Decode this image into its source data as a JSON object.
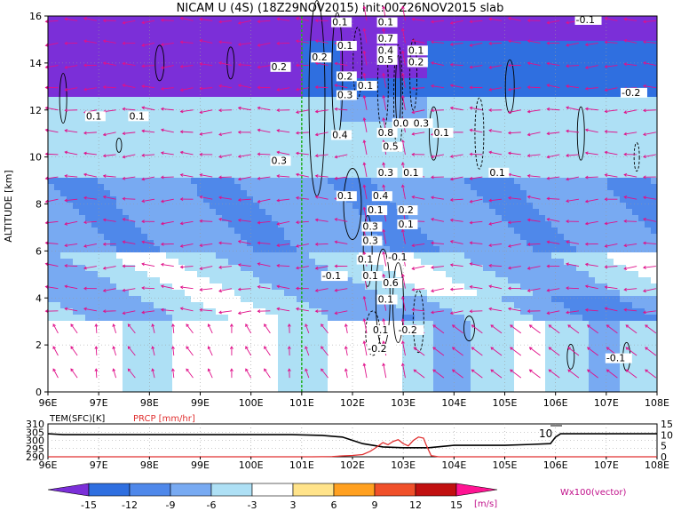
{
  "title": "NICAM U (4S) (18Z29NOV2015) init:00Z26NOV2015 slab",
  "chart_data": [
    {
      "type": "heatmap",
      "xlabel": "",
      "ylabel": "ALTITUDE [km]",
      "xlim": [
        96,
        108
      ],
      "ylim": [
        0,
        16
      ],
      "x_ticks": [
        "96E",
        "97E",
        "98E",
        "99E",
        "100E",
        "101E",
        "102E",
        "103E",
        "104E",
        "105E",
        "106E",
        "107E",
        "108E"
      ],
      "y_ticks": [
        "0",
        "2",
        "4",
        "6",
        "8",
        "10",
        "12",
        "14",
        "16"
      ],
      "vertical_line_lon": 101,
      "contour_labels": [
        {
          "lon": 96.75,
          "alt": 11.6,
          "text": "0.1"
        },
        {
          "lon": 97.6,
          "alt": 11.6,
          "text": "0.1"
        },
        {
          "lon": 100.4,
          "alt": 13.7,
          "text": "0.2"
        },
        {
          "lon": 100.4,
          "alt": 9.7,
          "text": "0.3"
        },
        {
          "lon": 101.6,
          "alt": 15.6,
          "text": "0.1"
        },
        {
          "lon": 101.2,
          "alt": 14.1,
          "text": "0.2"
        },
        {
          "lon": 101.7,
          "alt": 14.6,
          "text": "0.1"
        },
        {
          "lon": 101.7,
          "alt": 13.3,
          "text": "0.2"
        },
        {
          "lon": 101.7,
          "alt": 12.5,
          "text": "0.3"
        },
        {
          "lon": 101.6,
          "alt": 10.8,
          "text": "0.4"
        },
        {
          "lon": 102.1,
          "alt": 12.9,
          "text": "0.1"
        },
        {
          "lon": 102.5,
          "alt": 15.6,
          "text": "0.1"
        },
        {
          "lon": 102.5,
          "alt": 14.9,
          "text": "0.7"
        },
        {
          "lon": 102.5,
          "alt": 14.4,
          "text": "0.4"
        },
        {
          "lon": 102.5,
          "alt": 14.0,
          "text": "0.5"
        },
        {
          "lon": 103.1,
          "alt": 14.4,
          "text": "0.1"
        },
        {
          "lon": 103.1,
          "alt": 13.9,
          "text": "0.2"
        },
        {
          "lon": 102.8,
          "alt": 11.3,
          "text": "0.0"
        },
        {
          "lon": 103.2,
          "alt": 11.3,
          "text": "0.3"
        },
        {
          "lon": 102.5,
          "alt": 10.9,
          "text": "0.8"
        },
        {
          "lon": 102.6,
          "alt": 10.3,
          "text": "0.5"
        },
        {
          "lon": 103.6,
          "alt": 10.9,
          "text": "0.1"
        },
        {
          "lon": 102.5,
          "alt": 9.2,
          "text": "0.3"
        },
        {
          "lon": 103.0,
          "alt": 9.2,
          "text": "0.1"
        },
        {
          "lon": 104.7,
          "alt": 9.2,
          "text": "0.1"
        },
        {
          "lon": 101.7,
          "alt": 8.2,
          "text": "0.1"
        },
        {
          "lon": 102.4,
          "alt": 8.2,
          "text": "0.4"
        },
        {
          "lon": 102.3,
          "alt": 7.6,
          "text": "0.1"
        },
        {
          "lon": 102.9,
          "alt": 7.6,
          "text": "0.2"
        },
        {
          "lon": 102.9,
          "alt": 7.0,
          "text": "0.1"
        },
        {
          "lon": 102.2,
          "alt": 6.9,
          "text": "0.3"
        },
        {
          "lon": 102.2,
          "alt": 6.3,
          "text": "0.3"
        },
        {
          "lon": 102.1,
          "alt": 5.5,
          "text": "0.1"
        },
        {
          "lon": 102.7,
          "alt": 5.6,
          "text": "-0.1"
        },
        {
          "lon": 101.4,
          "alt": 4.8,
          "text": "-0.1"
        },
        {
          "lon": 102.2,
          "alt": 4.8,
          "text": "0.1"
        },
        {
          "lon": 102.6,
          "alt": 4.5,
          "text": "0.6"
        },
        {
          "lon": 102.5,
          "alt": 3.8,
          "text": "0.1"
        },
        {
          "lon": 102.9,
          "alt": 2.5,
          "text": "-0.2"
        },
        {
          "lon": 102.3,
          "alt": 1.7,
          "text": "-0.2"
        },
        {
          "lon": 106.4,
          "alt": 15.7,
          "text": "-0.1"
        },
        {
          "lon": 107.3,
          "alt": 12.6,
          "text": "-0.2"
        },
        {
          "lon": 107.0,
          "alt": 1.3,
          "text": "-0.1"
        },
        {
          "lon": 102.4,
          "alt": 2.5,
          "text": "0.1"
        }
      ]
    },
    {
      "type": "line",
      "xlim": [
        96,
        108
      ],
      "x_ticks": [
        "96E",
        "97E",
        "98E",
        "99E",
        "100E",
        "101E",
        "102E",
        "103E",
        "104E",
        "105E",
        "106E",
        "107E",
        "108E"
      ],
      "left_axis": {
        "label": "TEM(SFC)[K]",
        "ticks": [
          "290",
          "295",
          "300",
          "305",
          "310"
        ],
        "ylim": [
          290,
          310
        ]
      },
      "right_axis": {
        "label": "PRCP [mm/hr]",
        "ticks": [
          "0",
          "5",
          "10",
          "15"
        ],
        "ylim": [
          0,
          15
        ]
      },
      "annotation": "10",
      "series": [
        {
          "name": "TEM(SFC)[K]",
          "color": "#000000",
          "x": [
            96,
            96.3,
            97,
            98,
            99,
            100,
            100.8,
            101.4,
            101.8,
            102.0,
            102.2,
            102.6,
            103.0,
            103.5,
            104.0,
            104.5,
            105.0,
            105.5,
            105.9,
            106.0,
            106.1,
            106.5,
            107,
            108
          ],
          "y": [
            304,
            303.5,
            303.5,
            303.5,
            303.5,
            303.5,
            303.5,
            303,
            302,
            300,
            298,
            296,
            295.5,
            295.5,
            297,
            297,
            297,
            297.5,
            298,
            302,
            304,
            304,
            304,
            304
          ]
        },
        {
          "name": "PRCP [mm/hr]",
          "color": "#e03030",
          "x": [
            96,
            101.2,
            101.6,
            101.8,
            102.0,
            102.2,
            102.35,
            102.45,
            102.6,
            102.7,
            102.8,
            102.9,
            103.0,
            103.1,
            103.2,
            103.3,
            103.4,
            103.45,
            103.55,
            103.7,
            108
          ],
          "y": [
            0,
            0,
            0.1,
            0.4,
            0.6,
            1.0,
            2.5,
            4.0,
            6.5,
            5.5,
            7.0,
            7.8,
            6.0,
            5.0,
            7.5,
            9.0,
            8.5,
            5.5,
            0.5,
            0,
            0
          ]
        }
      ]
    }
  ],
  "colorbar": {
    "ticks": [
      "-15",
      "-12",
      "-9",
      "-6",
      "-3",
      "3",
      "6",
      "9",
      "12",
      "15"
    ],
    "colors": [
      "#7b2fd8",
      "#2f6fe0",
      "#4f88ea",
      "#78aaf2",
      "#aee0f5",
      "#ffffff",
      "#ffe38a",
      "#ffa020",
      "#f0502a",
      "#c11010",
      "#ff1493"
    ],
    "unit": "[m/s]"
  },
  "vector_label": "Wx100(vector)"
}
